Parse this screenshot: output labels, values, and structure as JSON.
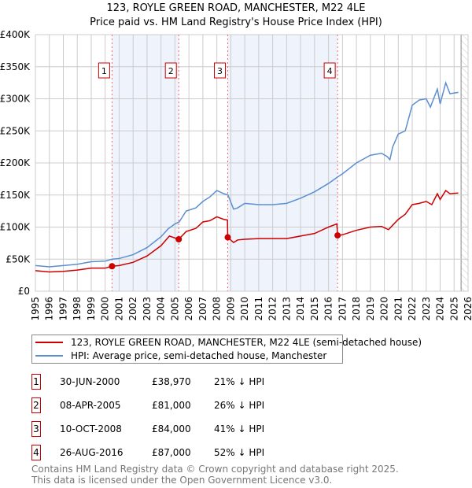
{
  "chart_data": {
    "type": "line",
    "title": "123, ROYLE GREEN ROAD, MANCHESTER, M22 4LE",
    "subtitle": "Price paid vs. HM Land Registry's House Price Index (HPI)",
    "ylim": [
      0,
      400000
    ],
    "xlim": [
      1995,
      2026
    ],
    "y_ticks": [
      {
        "v": 0,
        "label": "£0"
      },
      {
        "v": 50000,
        "label": "£50K"
      },
      {
        "v": 100000,
        "label": "£100K"
      },
      {
        "v": 150000,
        "label": "£150K"
      },
      {
        "v": 200000,
        "label": "£200K"
      },
      {
        "v": 250000,
        "label": "£250K"
      },
      {
        "v": 300000,
        "label": "£300K"
      },
      {
        "v": 350000,
        "label": "£350K"
      },
      {
        "v": 400000,
        "label": "£400K"
      }
    ],
    "x_ticks": [
      "1995",
      "1996",
      "1997",
      "1998",
      "1999",
      "2000",
      "2001",
      "2002",
      "2003",
      "2004",
      "2005",
      "2006",
      "2007",
      "2008",
      "2009",
      "2010",
      "2011",
      "2012",
      "2013",
      "2014",
      "2015",
      "2016",
      "2017",
      "2018",
      "2019",
      "2020",
      "2021",
      "2022",
      "2023",
      "2024",
      "2025",
      "2026"
    ],
    "grid": true,
    "series": [
      {
        "name": "123, ROYLE GREEN ROAD, MANCHESTER, M22 4LE (semi-detached house)",
        "color": "#cc0000",
        "x": [
          1995,
          1996,
          1997,
          1998,
          1999,
          2000,
          2000.49,
          2001,
          2002,
          2003,
          2004,
          2004.6,
          2005.27,
          2005.8,
          2006.5,
          2007,
          2007.5,
          2008,
          2008.5,
          2008.76,
          2008.78,
          2009.2,
          2009.5,
          2010,
          2011,
          2012,
          2013,
          2014,
          2015,
          2016,
          2016.6,
          2016.65,
          2017,
          2018,
          2019,
          2019.8,
          2020.3,
          2020.6,
          2021,
          2021.5,
          2022,
          2022.5,
          2023,
          2023.4,
          2023.8,
          2024,
          2024.4,
          2024.7,
          2025.3
        ],
        "y": [
          32000,
          30000,
          31000,
          33000,
          36000,
          36000,
          38970,
          40000,
          45000,
          55000,
          71000,
          86000,
          81000,
          93000,
          98000,
          108000,
          110000,
          116000,
          112000,
          111000,
          84000,
          76000,
          80000,
          81000,
          82000,
          82000,
          82000,
          86000,
          90000,
          100000,
          105000,
          87000,
          88000,
          95000,
          100000,
          101000,
          96000,
          103000,
          112000,
          120000,
          135000,
          137000,
          140000,
          135000,
          152000,
          143000,
          157000,
          152000,
          153000
        ]
      },
      {
        "name": "HPI: Average price, semi-detached house, Manchester",
        "color": "#5b8fd0",
        "x": [
          1995,
          1996,
          1997,
          1998,
          1999,
          2000,
          2000.5,
          2001,
          2002,
          2003,
          2004,
          2004.5,
          2005,
          2005.3,
          2005.8,
          2006.5,
          2007,
          2007.5,
          2008,
          2008.5,
          2008.8,
          2009.2,
          2009.5,
          2010,
          2011,
          2012,
          2013,
          2014,
          2015,
          2016,
          2016.65,
          2017,
          2018,
          2019,
          2019.8,
          2020.2,
          2020.4,
          2020.6,
          2021,
          2021.5,
          2022,
          2022.5,
          2023,
          2023.3,
          2023.8,
          2024,
          2024.4,
          2024.7,
          2025.3
        ],
        "y": [
          40000,
          38000,
          40000,
          42000,
          46000,
          47000,
          50000,
          51000,
          57000,
          68000,
          85000,
          97000,
          105000,
          108000,
          125000,
          130000,
          140000,
          147000,
          157000,
          152000,
          150000,
          128000,
          130000,
          137000,
          135000,
          135000,
          137000,
          145000,
          155000,
          168000,
          178000,
          183000,
          200000,
          212000,
          215000,
          210000,
          205000,
          225000,
          245000,
          250000,
          290000,
          298000,
          300000,
          287000,
          315000,
          292000,
          325000,
          308000,
          310000
        ]
      }
    ],
    "sales": [
      {
        "id": "1",
        "x": 2000.49,
        "price": 38970,
        "date": "30-JUN-2000",
        "price_label": "£38,970",
        "hpi": "21% ↓ HPI"
      },
      {
        "id": "2",
        "x": 2005.27,
        "price": 81000,
        "date": "08-APR-2005",
        "price_label": "£81,000",
        "hpi": "26% ↓ HPI"
      },
      {
        "id": "3",
        "x": 2008.78,
        "price": 84000,
        "date": "10-OCT-2008",
        "price_label": "£84,000",
        "hpi": "41% ↓ HPI"
      },
      {
        "id": "4",
        "x": 2016.65,
        "price": 87000,
        "date": "26-AUG-2016",
        "price_label": "£87,000",
        "hpi": "52% ↓ HPI"
      }
    ],
    "forecast_start": 2025.5
  },
  "footer": {
    "line1": "Contains HM Land Registry data © Crown copyright and database right 2025.",
    "line2": "This data is licensed under the Open Government Licence v3.0."
  }
}
